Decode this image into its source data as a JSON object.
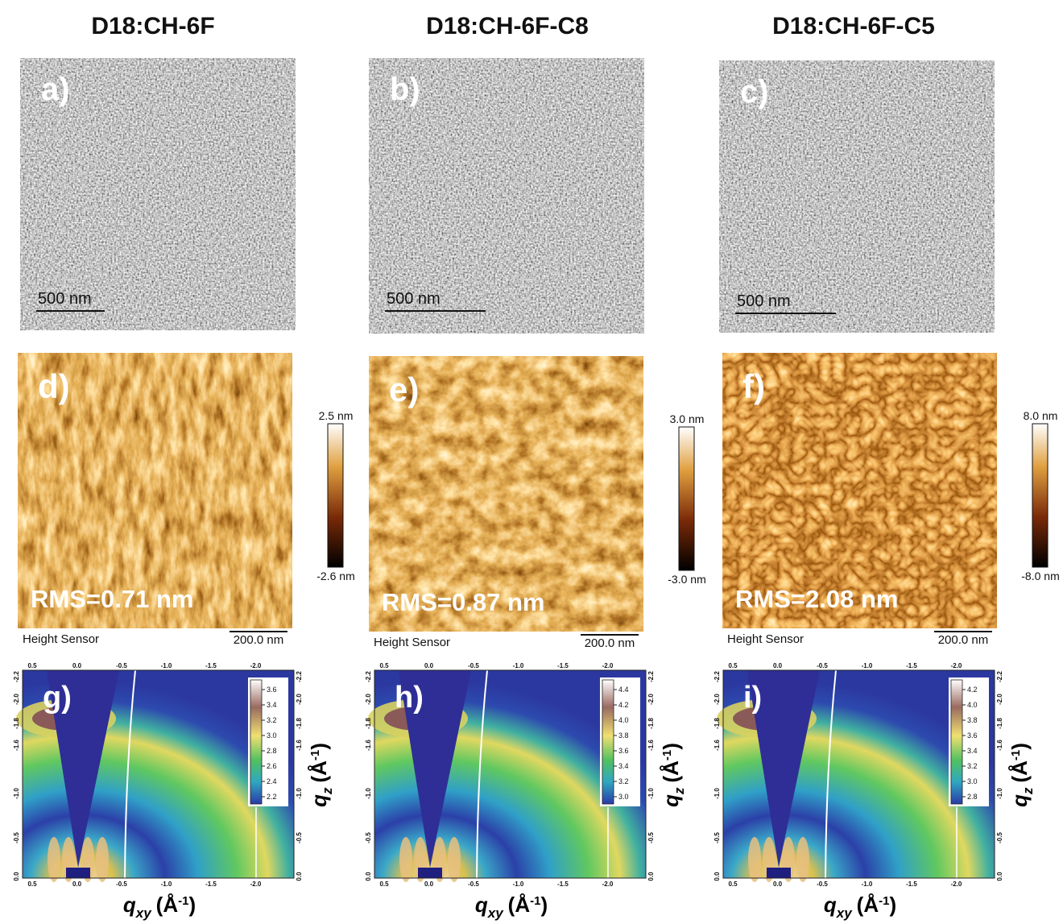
{
  "columns": [
    {
      "title": "D18:CH-6F",
      "tem": {
        "label": "a)",
        "scale": "500 nm"
      },
      "afm": {
        "label": "d)",
        "rms": "RMS=0.71 nm",
        "sensor": "Height Sensor",
        "scale": "200.0 nm",
        "cbar_top": "2.5 nm",
        "cbar_bottom": "-2.6 nm"
      },
      "giwaxs": {
        "label": "g)",
        "cbar_ticks": [
          "3.6",
          "3.4",
          "3.2",
          "3.0",
          "2.8",
          "2.6",
          "2.4",
          "2.2"
        ]
      }
    },
    {
      "title": "D18:CH-6F-C8",
      "tem": {
        "label": "b)",
        "scale": "500 nm"
      },
      "afm": {
        "label": "e)",
        "rms": "RMS=0.87 nm",
        "sensor": "Height Sensor",
        "scale": "200.0 nm",
        "cbar_top": "3.0 nm",
        "cbar_bottom": "-3.0 nm"
      },
      "giwaxs": {
        "label": "h)",
        "cbar_ticks": [
          "4.4",
          "4.2",
          "4.0",
          "3.8",
          "3.6",
          "3.4",
          "3.2",
          "3.0"
        ]
      }
    },
    {
      "title": "D18:CH-6F-C5",
      "tem": {
        "label": "c)",
        "scale": "500 nm"
      },
      "afm": {
        "label": "f)",
        "rms": "RMS=2.08 nm",
        "sensor": "Height Sensor",
        "scale": "200.0 nm",
        "cbar_top": "8.0 nm",
        "cbar_bottom": "-8.0 nm"
      },
      "giwaxs": {
        "label": "i)",
        "cbar_ticks": [
          "4.2",
          "4.0",
          "3.8",
          "3.6",
          "3.4",
          "3.2",
          "3.0",
          "2.8"
        ]
      }
    }
  ],
  "giwaxs_axes": {
    "x_ticks": [
      "0.5",
      "0.0",
      "-0.5",
      "-1.0",
      "-1.5",
      "-2.0"
    ],
    "y_ticks": [
      "-2.2",
      "-2.0",
      "-1.8",
      "-1.6",
      "-1.0",
      "-0.5",
      "0.0"
    ],
    "x_label": {
      "symbol": "q",
      "subscript": "xy",
      "unit": "(Å",
      "exponent": "-1",
      "close": ")"
    },
    "y_label": {
      "symbol": "q",
      "subscript": "z",
      "unit": "(Å",
      "exponent": "-1",
      "close": ")"
    }
  }
}
